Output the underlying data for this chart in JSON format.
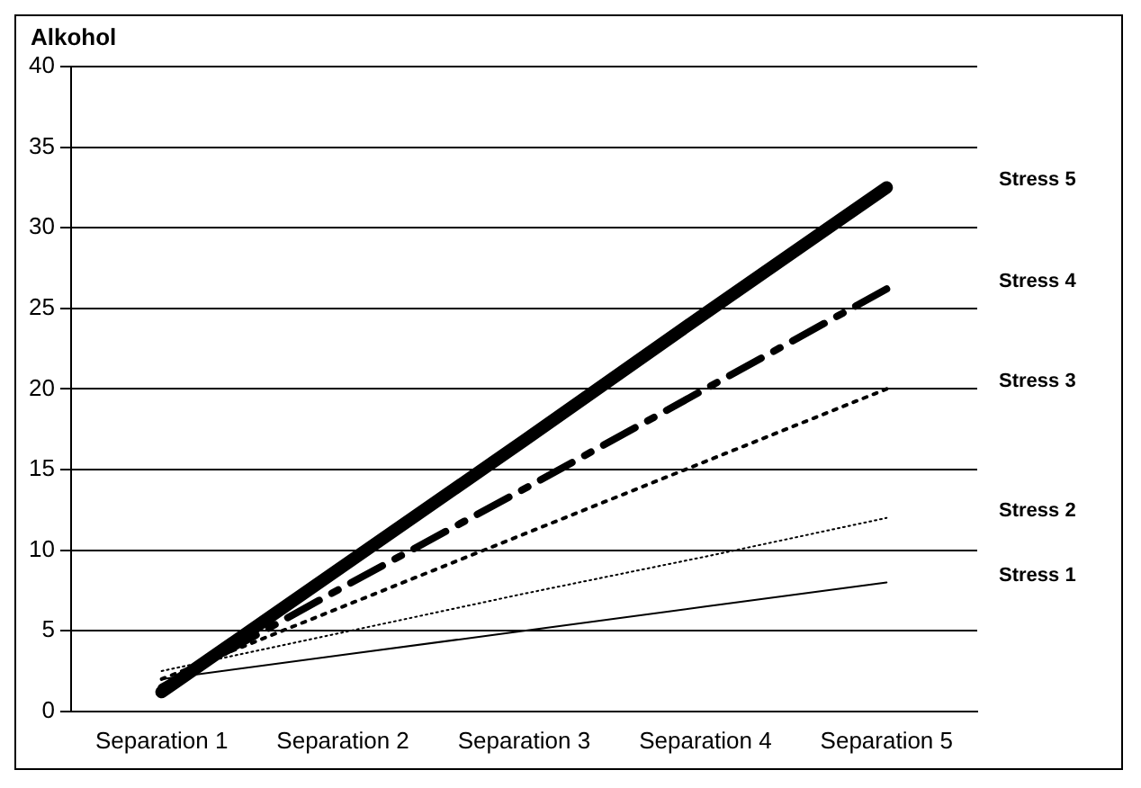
{
  "chart_data": {
    "type": "line",
    "ylabel": "Alkohol",
    "categories": [
      "Separation 1",
      "Separation 2",
      "Separation 3",
      "Separation 4",
      "Separation 5"
    ],
    "series": [
      {
        "name": "Stress 1",
        "color": "#000000",
        "line_style": "solid",
        "values": [
          2,
          3.5,
          5,
          6.5,
          8
        ]
      },
      {
        "name": "Stress 2",
        "color": "#000000",
        "line_style": "dotted",
        "values": [
          2.5,
          4.9,
          7.3,
          9.6,
          12
        ]
      },
      {
        "name": "Stress 3",
        "color": "#000000",
        "line_style": "dotted",
        "values": [
          2,
          6.5,
          11,
          15.5,
          20
        ]
      },
      {
        "name": "Stress 4",
        "color": "#000000",
        "line_style": "dashed",
        "values": [
          1.5,
          7.7,
          13.8,
          20,
          26.2
        ]
      },
      {
        "name": "Stress 5",
        "color": "#000000",
        "line_style": "solid",
        "values": [
          1.2,
          9,
          16.8,
          24.7,
          32.5
        ]
      }
    ],
    "ylim": [
      0,
      40
    ],
    "yticks": [
      0,
      5,
      10,
      15,
      20,
      25,
      30,
      35,
      40
    ],
    "grid": "y",
    "legend": false,
    "marker": "none"
  }
}
